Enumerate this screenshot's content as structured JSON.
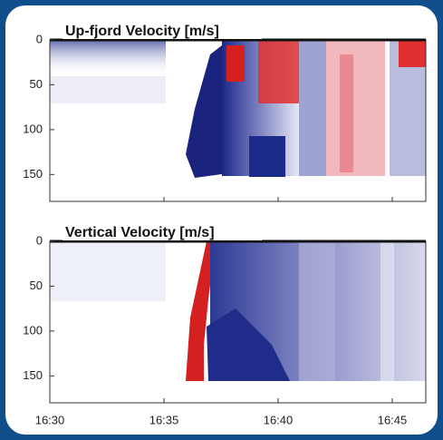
{
  "chart_data": [
    {
      "type": "heatmap",
      "title": "Up-fjord Velocity [m/s]",
      "ylim": [
        0,
        180
      ],
      "yticks": [
        0,
        50,
        100,
        150
      ]
    },
    {
      "type": "heatmap",
      "title": "Vertical Velocity [m/s]",
      "ylim": [
        0,
        180
      ],
      "yticks": [
        0,
        50,
        100,
        150
      ],
      "xticks": [
        "16:30",
        "16:35",
        "16:40",
        "16:45"
      ]
    }
  ]
}
